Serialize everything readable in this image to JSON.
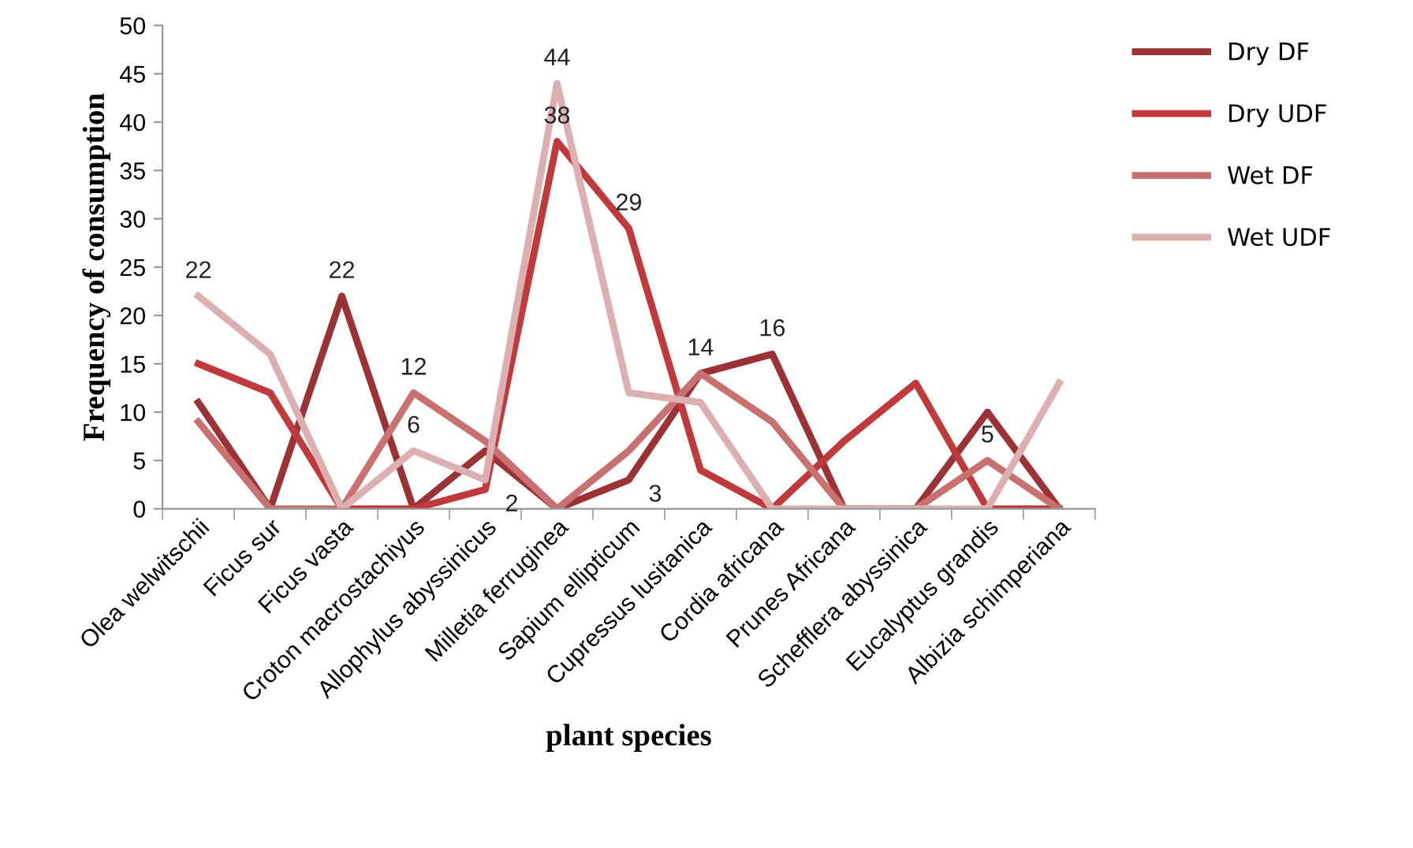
{
  "chart_data": {
    "type": "line",
    "xlabel": "plant species",
    "ylabel": "Frequency of consumption",
    "categories": [
      "Olea welwitschii",
      "Ficus sur",
      "Ficus vasta",
      "Croton macrostachiyus",
      "Allophylus abyssinicus",
      "Milletia ferruginea",
      "Sapium ellipticum",
      "Cupressus lusitanica",
      "Cordia africana",
      "Prunes Africana",
      "Schefflera abyssinica",
      "Eucalyptus grandis",
      "Albizia schimperiana"
    ],
    "series": [
      {
        "name": "Dry DF",
        "color": "#9b3236",
        "values": [
          11,
          0,
          22,
          0,
          6,
          0,
          3,
          14,
          16,
          0,
          0,
          10,
          0
        ],
        "value_labels": [
          null,
          null,
          "22",
          null,
          null,
          null,
          "3",
          null,
          "16",
          null,
          null,
          null,
          null
        ]
      },
      {
        "name": "Dry UDF",
        "color": "#c0393b",
        "values": [
          15,
          12,
          0,
          0,
          2,
          38,
          29,
          4,
          0,
          7,
          13,
          0,
          0
        ],
        "value_labels": [
          null,
          null,
          null,
          null,
          "2",
          "38",
          "29",
          null,
          null,
          null,
          null,
          null,
          null
        ]
      },
      {
        "name": "Wet DF",
        "color": "#c97070",
        "values": [
          9,
          0,
          0,
          12,
          7,
          0,
          6,
          14,
          9,
          0,
          0,
          5,
          0
        ],
        "value_labels": [
          null,
          null,
          null,
          "12",
          null,
          null,
          null,
          "14",
          null,
          null,
          null,
          "5",
          null
        ]
      },
      {
        "name": "Wet UDF",
        "color": "#dcb0b0",
        "values": [
          22,
          16,
          0,
          6,
          3,
          44,
          12,
          11,
          0,
          0,
          0,
          0,
          13
        ],
        "value_labels": [
          "22",
          null,
          null,
          "6",
          null,
          "44",
          null,
          null,
          null,
          null,
          null,
          null,
          null
        ]
      }
    ],
    "ylim": [
      0,
      50
    ],
    "yticks": [
      0,
      5,
      10,
      15,
      20,
      25,
      30,
      35,
      40,
      45,
      50
    ],
    "grid": false,
    "legend": "right",
    "marker": "none",
    "line_style": "solid"
  }
}
